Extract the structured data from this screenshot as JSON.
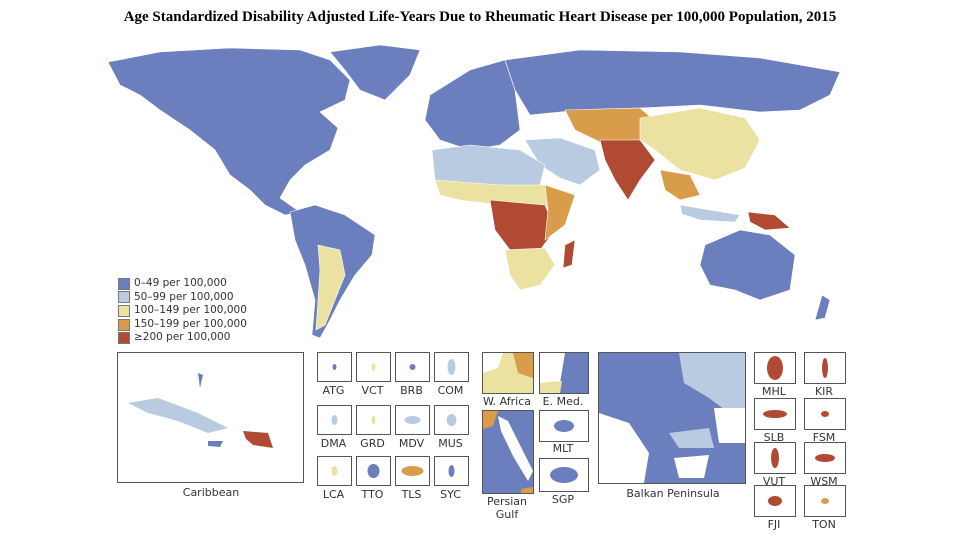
{
  "title": "Age Standardized Disability Adjusted Life-Years Due to Rheumatic Heart Disease per 100,000 Population, 2015",
  "colors": {
    "c0": "#6b7fbf",
    "c1": "#b8cbe0",
    "c2": "#ebe2a2",
    "c3": "#d99c4a",
    "c4": "#b04a33"
  },
  "legend": [
    {
      "label": "0–49 per 100,000",
      "color": "#6b7fbf"
    },
    {
      "label": "50–99 per 100,000",
      "color": "#b8cbe0"
    },
    {
      "label": "100–149 per 100,000",
      "color": "#ebe2a2"
    },
    {
      "label": "150–199 per 100,000",
      "color": "#d99c4a"
    },
    {
      "label": "≥200 per 100,000",
      "color": "#b04a33"
    }
  ],
  "insets": {
    "caribbean": "Caribbean",
    "atg": "ATG",
    "vct": "VCT",
    "brb": "BRB",
    "com": "COM",
    "dma": "DMA",
    "grd": "GRD",
    "mdv": "MDV",
    "mus": "MUS",
    "lca": "LCA",
    "tto": "TTO",
    "tls": "TLS",
    "syc": "SYC",
    "wafrica": "W. Africa",
    "emed": "E. Med.",
    "persian1": "Persian",
    "persian2": "Gulf",
    "mlt": "MLT",
    "sgp": "SGP",
    "balkan": "Balkan Peninsula",
    "mhl": "MHL",
    "kir": "KIR",
    "slb": "SLB",
    "fsm": "FSM",
    "vut": "VUT",
    "wsm": "WSM",
    "fji": "FJI",
    "ton": "TON"
  }
}
